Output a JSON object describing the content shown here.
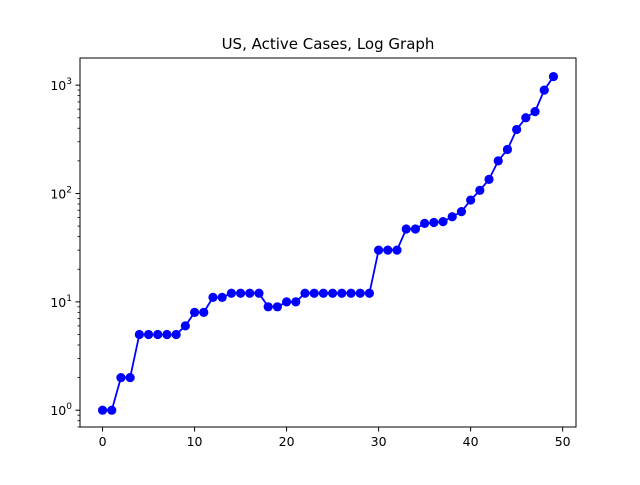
{
  "chart_data": {
    "type": "line",
    "title": "US, Active Cases, Log Graph",
    "xlabel": "",
    "ylabel": "",
    "yscale": "log",
    "xlim": [
      -2.45,
      51.45
    ],
    "ylim": [
      0.7,
      1780
    ],
    "x_ticks": [
      0,
      10,
      20,
      30,
      40,
      50
    ],
    "y_ticks": [
      {
        "value": 1,
        "base": "10",
        "exp": "0"
      },
      {
        "value": 10,
        "base": "10",
        "exp": "1"
      },
      {
        "value": 100,
        "base": "10",
        "exp": "2"
      },
      {
        "value": 1000,
        "base": "10",
        "exp": "3"
      }
    ],
    "grid": false,
    "series": [
      {
        "color": "#0000ff",
        "marker": "circle",
        "x": [
          0,
          1,
          2,
          3,
          4,
          5,
          6,
          7,
          8,
          9,
          10,
          11,
          12,
          13,
          14,
          15,
          16,
          17,
          18,
          19,
          20,
          21,
          22,
          23,
          24,
          25,
          26,
          27,
          28,
          29,
          30,
          31,
          32,
          33,
          34,
          35,
          36,
          37,
          38,
          39,
          40,
          41,
          42,
          43,
          44,
          45,
          46,
          47,
          48,
          49
        ],
        "values": [
          1,
          1,
          2,
          2,
          5,
          5,
          5,
          5,
          5,
          6,
          8,
          8,
          11,
          11,
          12,
          12,
          12,
          12,
          9,
          9,
          10,
          10,
          12,
          12,
          12,
          12,
          12,
          12,
          12,
          12,
          30,
          30,
          30,
          47,
          47,
          53,
          54,
          55,
          61,
          68,
          87,
          107,
          135,
          200,
          255,
          390,
          500,
          570,
          900,
          1200
        ]
      }
    ]
  }
}
